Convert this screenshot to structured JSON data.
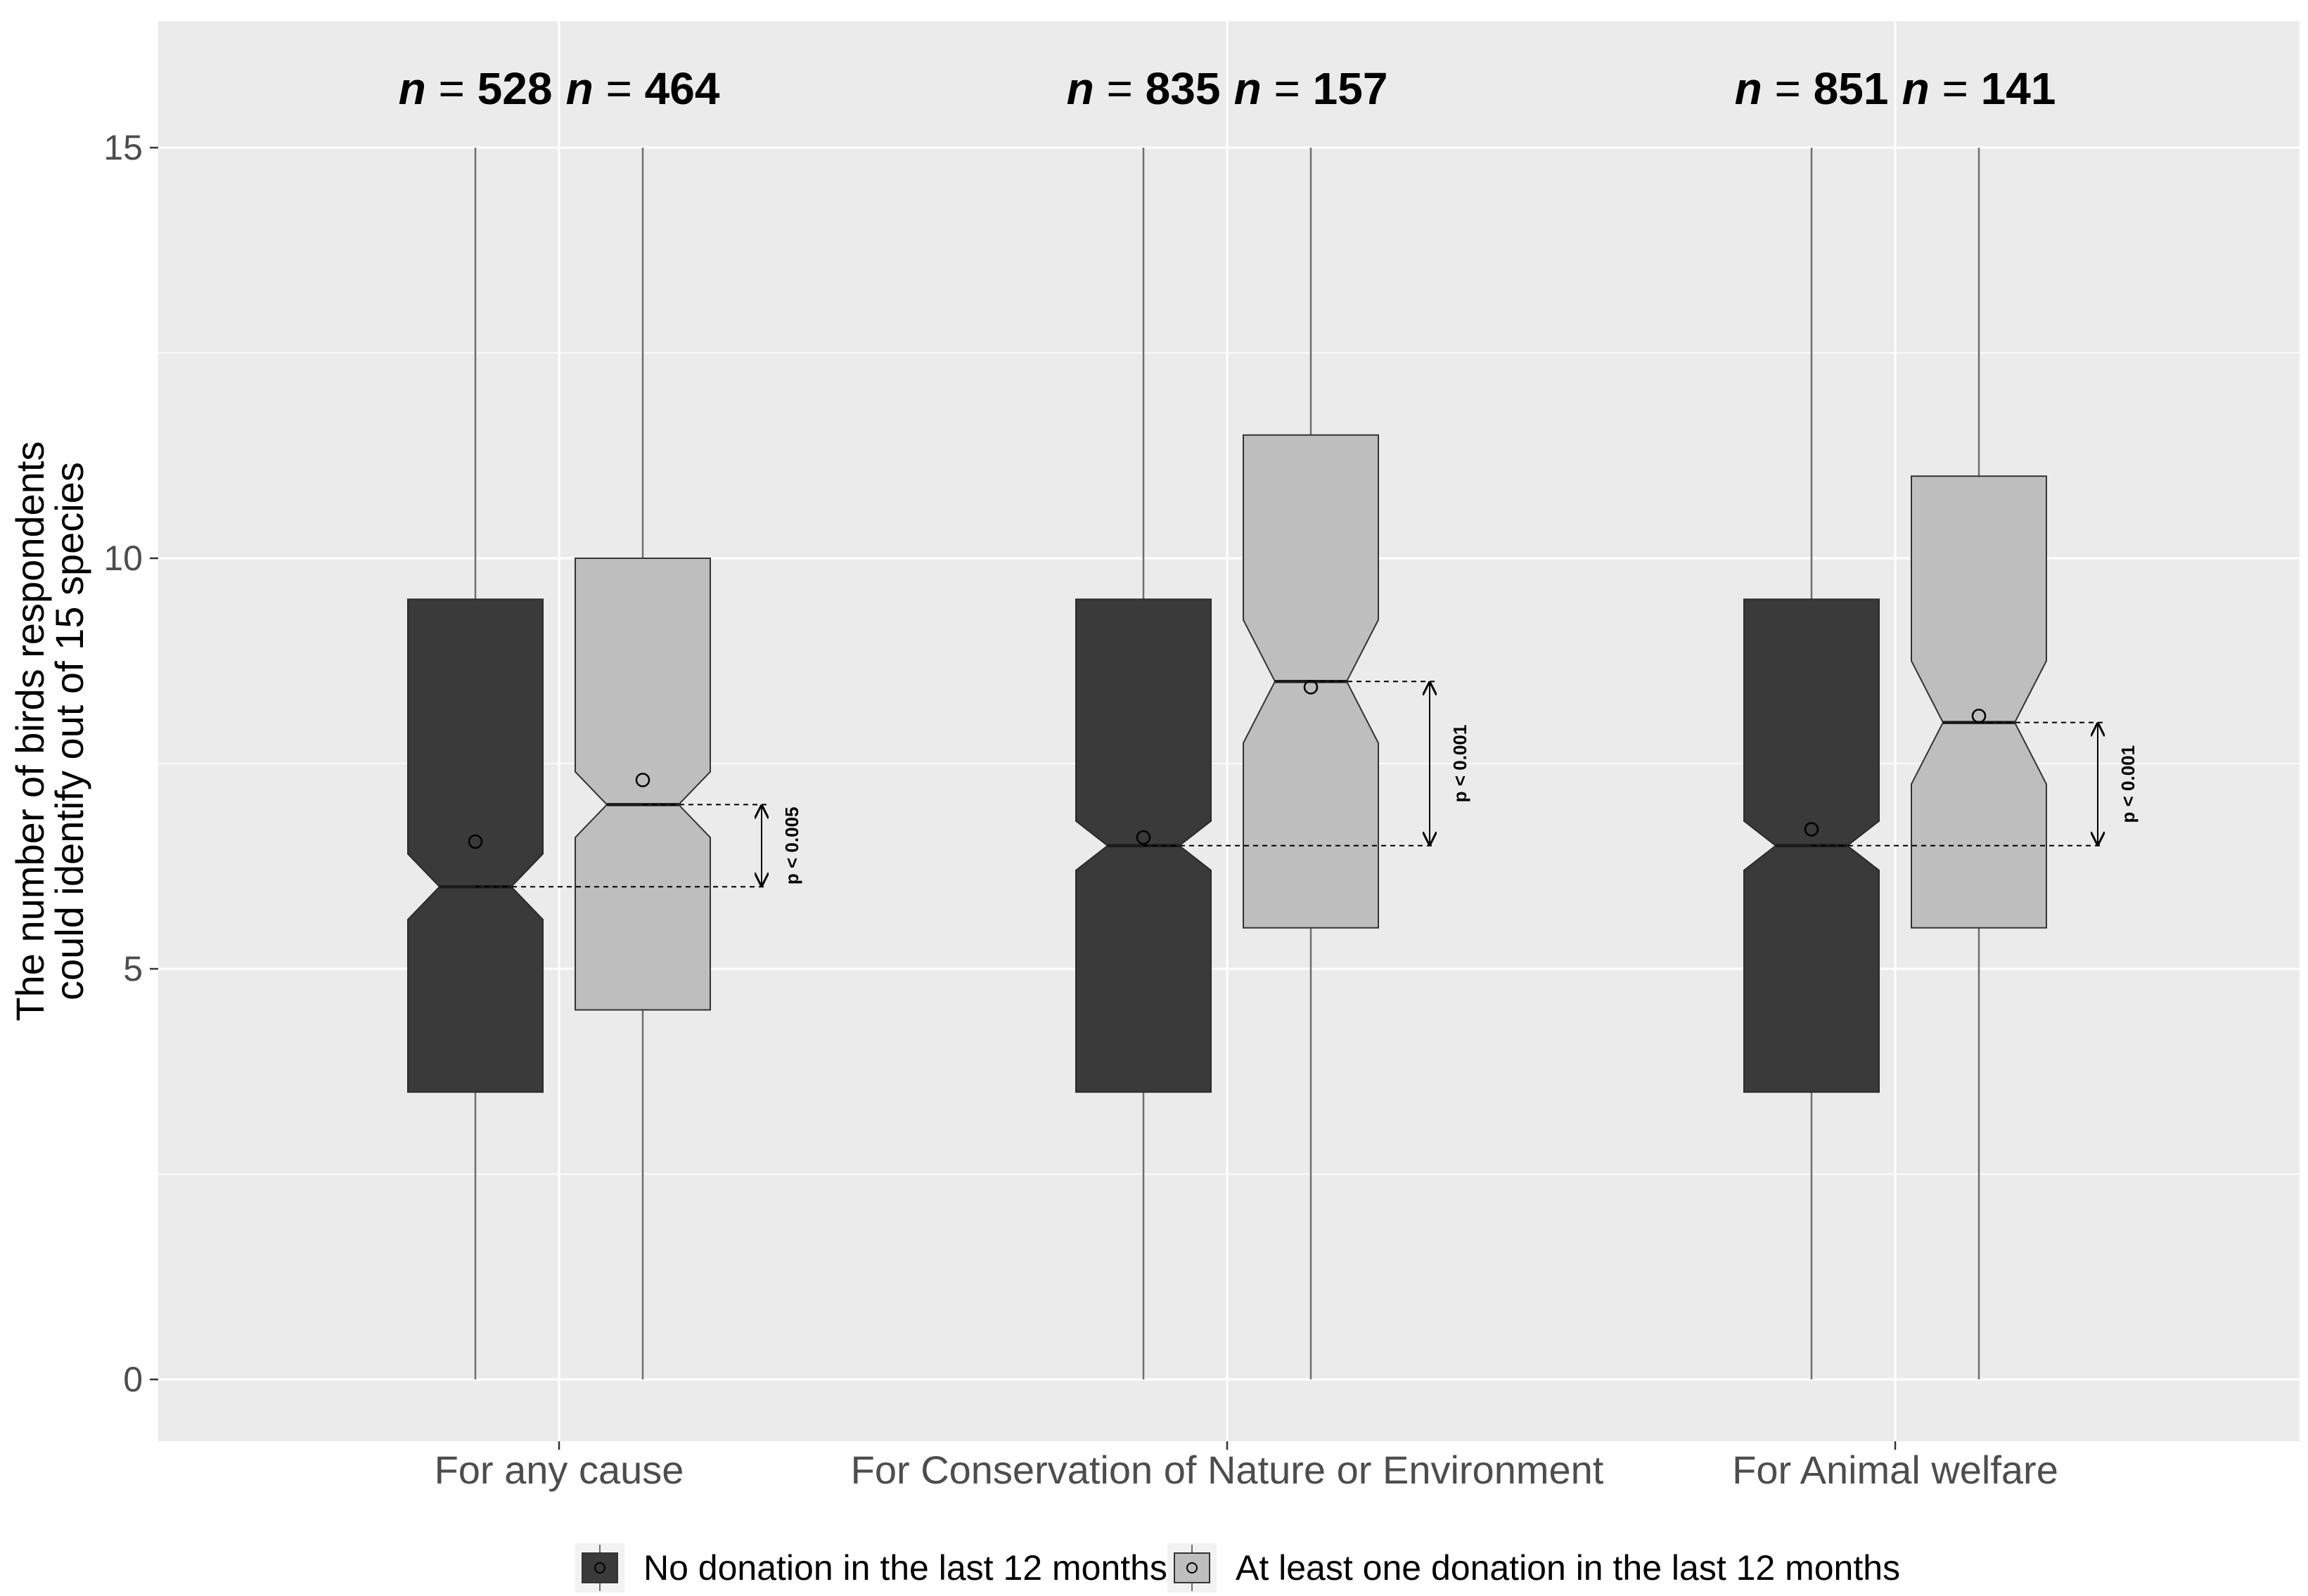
{
  "chart_data": {
    "type": "boxplot",
    "ylabel_line1": "The number of birds respondents",
    "ylabel_line2": "could identify out of 15 species",
    "ylim": [
      -0.55,
      16.1
    ],
    "yticks": [
      0,
      5,
      10,
      15
    ],
    "grid": true,
    "legend_position": "bottom",
    "categories": [
      "For any cause",
      "For Conservation of Nature or Environment",
      "For Animal welfare"
    ],
    "series": [
      {
        "name": "No donation in the last 12 months",
        "color": "#3a3a3a",
        "groups": [
          {
            "n": "528",
            "min": 0,
            "q1": 3.5,
            "median": 6.0,
            "q3": 9.5,
            "max": 15,
            "notch_low": 5.6,
            "notch_high": 6.4,
            "mean": 6.55
          },
          {
            "n": "835",
            "min": 0,
            "q1": 3.5,
            "median": 6.5,
            "q3": 9.5,
            "max": 15,
            "notch_low": 6.2,
            "notch_high": 6.8,
            "mean": 6.6
          },
          {
            "n": "851",
            "min": 0,
            "q1": 3.5,
            "median": 6.5,
            "q3": 9.5,
            "max": 15,
            "notch_low": 6.2,
            "notch_high": 6.8,
            "mean": 6.7
          }
        ]
      },
      {
        "name": "At least one donation in the last 12 months",
        "color": "#bebebe",
        "groups": [
          {
            "n": "464",
            "min": 0,
            "q1": 4.5,
            "median": 7.0,
            "q3": 10.0,
            "max": 15,
            "notch_low": 6.6,
            "notch_high": 7.4,
            "mean": 7.3
          },
          {
            "n": "157",
            "min": 0,
            "q1": 5.5,
            "median": 8.5,
            "q3": 11.5,
            "max": 15,
            "notch_low": 7.75,
            "notch_high": 9.25,
            "mean": 8.43
          },
          {
            "n": "141",
            "min": 0,
            "q1": 5.5,
            "median": 8.0,
            "q3": 11.0,
            "max": 15,
            "notch_low": 7.25,
            "notch_high": 8.75,
            "mean": 8.08
          }
        ]
      }
    ],
    "n_prefix": "n",
    "n_eq": "=",
    "p_labels": [
      "p < 0.005",
      "p < 0.001",
      "p < 0.001"
    ]
  }
}
